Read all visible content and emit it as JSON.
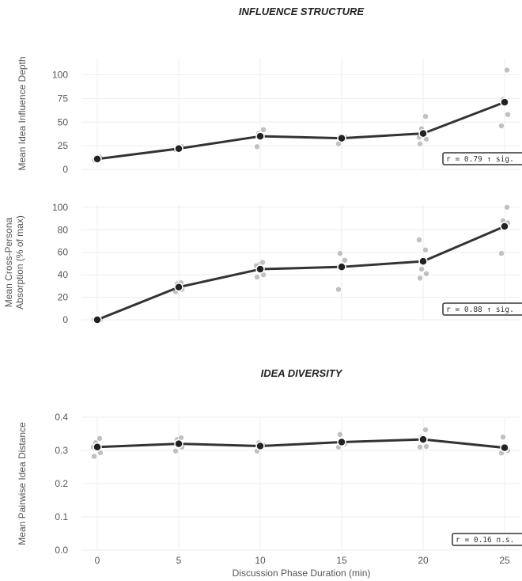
{
  "sections": [
    {
      "title": "INFLUENCE STRUCTURE"
    },
    {
      "title": "IDEA DIVERSITY"
    }
  ],
  "xlabel": "Discussion Phase Duration (min)",
  "x_ticks": [
    "0",
    "5",
    "10",
    "15",
    "20",
    "25"
  ],
  "chart_data": [
    {
      "type": "line",
      "section": "INFLUENCE STRUCTURE",
      "ylabel": [
        "Mean Idea Influence Depth"
      ],
      "xlabel": "",
      "x": [
        0,
        5,
        10,
        15,
        20,
        25
      ],
      "ylim": [
        0,
        118
      ],
      "yticks": [
        0,
        25,
        50,
        75,
        100
      ],
      "series": [
        {
          "values": [
            11,
            22,
            35,
            33,
            38,
            71
          ]
        }
      ],
      "raw_points": [
        {
          "x": 0,
          "y": [
            10,
            12,
            11,
            13
          ]
        },
        {
          "x": 5,
          "y": [
            21,
            24,
            23,
            22
          ]
        },
        {
          "x": 10,
          "y": [
            24,
            42,
            38,
            35
          ]
        },
        {
          "x": 15,
          "y": [
            27,
            34,
            35,
            32
          ]
        },
        {
          "x": 20,
          "y": [
            27,
            32,
            43,
            56,
            34
          ]
        },
        {
          "x": 25,
          "y": [
            46,
            58,
            74,
            105
          ]
        }
      ],
      "annotation": "r = 0.79  ↑ sig."
    },
    {
      "type": "line",
      "section": "INFLUENCE STRUCTURE",
      "ylabel": [
        "Mean Cross-Persona",
        "Absorption (% of max)"
      ],
      "xlabel": "",
      "x": [
        0,
        5,
        10,
        15,
        20,
        25
      ],
      "ylim": [
        0,
        102
      ],
      "yticks": [
        0,
        20,
        40,
        60,
        80,
        100
      ],
      "series": [
        {
          "values": [
            0,
            29,
            45,
            47,
            52,
            83
          ]
        }
      ],
      "raw_points": [
        {
          "x": 0,
          "y": [
            0,
            0,
            0
          ]
        },
        {
          "x": 5,
          "y": [
            25,
            27,
            32,
            33
          ]
        },
        {
          "x": 10,
          "y": [
            38,
            40,
            49,
            51,
            48
          ]
        },
        {
          "x": 15,
          "y": [
            27,
            53,
            59
          ]
        },
        {
          "x": 20,
          "y": [
            37,
            41,
            45,
            62,
            71
          ]
        },
        {
          "x": 25,
          "y": [
            59,
            86,
            88,
            100
          ]
        }
      ],
      "annotation": "r = 0.88  ↑ sig."
    },
    {
      "type": "line",
      "section": "IDEA DIVERSITY",
      "ylabel": [
        "Mean Pairwise Idea Distance"
      ],
      "xlabel": "Discussion Phase Duration (min)",
      "x": [
        0,
        5,
        10,
        15,
        20,
        25
      ],
      "ylim": [
        0,
        0.4
      ],
      "yticks": [
        "0.0",
        "0.1",
        "0.2",
        "0.3",
        "0.4"
      ],
      "series": [
        {
          "values": [
            0.31,
            0.32,
            0.313,
            0.325,
            0.333,
            0.308
          ]
        }
      ],
      "raw_points": [
        {
          "x": 0,
          "y": [
            0.282,
            0.293,
            0.323,
            0.336,
            0.31
          ]
        },
        {
          "x": 5,
          "y": [
            0.298,
            0.31,
            0.333,
            0.338
          ]
        },
        {
          "x": 10,
          "y": [
            0.298,
            0.315,
            0.323
          ]
        },
        {
          "x": 15,
          "y": [
            0.31,
            0.32,
            0.348
          ]
        },
        {
          "x": 20,
          "y": [
            0.31,
            0.312,
            0.34,
            0.362
          ]
        },
        {
          "x": 25,
          "y": [
            0.292,
            0.3,
            0.34
          ]
        }
      ],
      "annotation": "r = 0.16  n.s."
    }
  ]
}
